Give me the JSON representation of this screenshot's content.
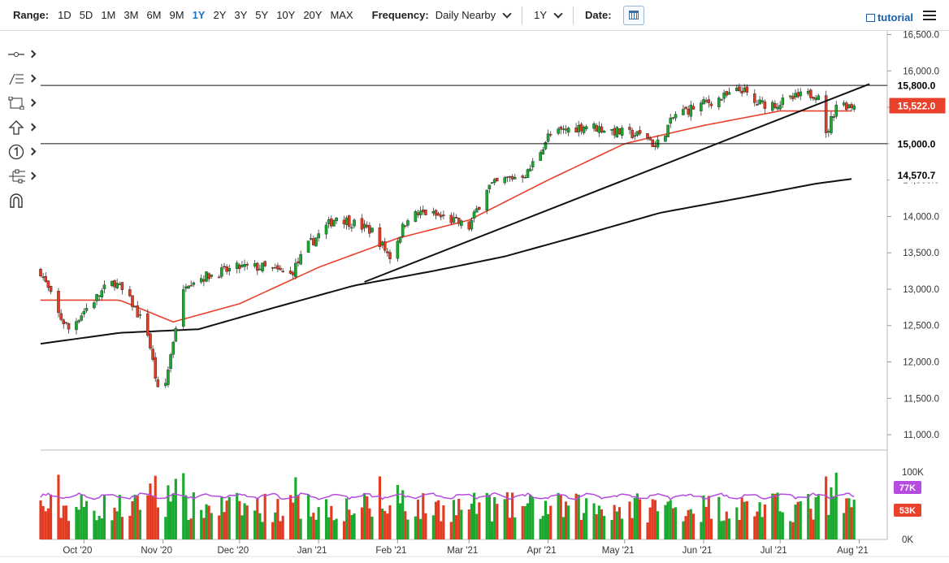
{
  "toolbar": {
    "range_label": "Range:",
    "ranges": [
      "1D",
      "5D",
      "1M",
      "3M",
      "6M",
      "9M",
      "1Y",
      "2Y",
      "3Y",
      "5Y",
      "10Y",
      "20Y",
      "MAX"
    ],
    "active_range": "1Y",
    "frequency_label": "Frequency:",
    "frequency_value": "Daily Nearby",
    "period_value": "1Y",
    "date_label": "Date:",
    "tutorial_label": "tutorial"
  },
  "sidebar_tools": [
    "crosshair-tool-icon",
    "fib-tool-icon",
    "rectangle-tool-icon",
    "arrow-up-tool-icon",
    "number-marker-tool-icon",
    "pitchfork-tool-icon",
    "magnet-tool-icon"
  ],
  "chart_data": {
    "type": "candlestick",
    "title": "",
    "xlabel": "",
    "ylabel": "",
    "ylim": [
      10800,
      16550
    ],
    "y_ticks": [
      11000,
      11500,
      12000,
      12500,
      13000,
      13500,
      14000,
      14500,
      15000,
      15500,
      16000,
      16500
    ],
    "y_tick_labels": [
      "11,000.0",
      "11,500.0",
      "12,000.0",
      "12,500.0",
      "13,000.0",
      "13,500.0",
      "14,000.0",
      "14,500.0",
      "15,000.0",
      "15,500.0",
      "16,000.0",
      "16,500.0"
    ],
    "x_tick_labels": [
      "Oct '20",
      "Nov '20",
      "Dec '20",
      "Jan '21",
      "Feb '21",
      "Mar '21",
      "Apr '21",
      "May '21",
      "Jun '21",
      "Jul '21",
      "Aug '21"
    ],
    "x_tick_dates": [
      "2020-10-01",
      "2020-11-01",
      "2020-12-01",
      "2021-01-01",
      "2021-02-01",
      "2021-03-01",
      "2021-04-01",
      "2021-05-01",
      "2021-06-01",
      "2021-07-01",
      "2021-08-01"
    ],
    "date_range": [
      "2020-09-14",
      "2021-08-12"
    ],
    "price_path": [
      {
        "date": "2020-09-14",
        "close": 13250
      },
      {
        "date": "2020-09-21",
        "close": 12650
      },
      {
        "date": "2020-09-25",
        "close": 12450
      },
      {
        "date": "2020-10-01",
        "close": 12700
      },
      {
        "date": "2020-10-09",
        "close": 13000
      },
      {
        "date": "2020-10-13",
        "close": 13100
      },
      {
        "date": "2020-10-20",
        "close": 12800
      },
      {
        "date": "2020-10-26",
        "close": 12400
      },
      {
        "date": "2020-10-30",
        "close": 11600
      },
      {
        "date": "2020-11-02",
        "close": 11700
      },
      {
        "date": "2020-11-06",
        "close": 12500
      },
      {
        "date": "2020-11-10",
        "close": 13100
      },
      {
        "date": "2020-11-20",
        "close": 13200
      },
      {
        "date": "2020-12-01",
        "close": 13300
      },
      {
        "date": "2020-12-10",
        "close": 13300
      },
      {
        "date": "2020-12-21",
        "close": 13200
      },
      {
        "date": "2020-12-28",
        "close": 13600
      },
      {
        "date": "2021-01-08",
        "close": 14000
      },
      {
        "date": "2021-01-15",
        "close": 13900
      },
      {
        "date": "2021-01-22",
        "close": 13800
      },
      {
        "date": "2021-01-29",
        "close": 13450
      },
      {
        "date": "2021-02-05",
        "close": 14000
      },
      {
        "date": "2021-02-12",
        "close": 14050
      },
      {
        "date": "2021-02-22",
        "close": 13950
      },
      {
        "date": "2021-03-01",
        "close": 13850
      },
      {
        "date": "2021-03-08",
        "close": 14400
      },
      {
        "date": "2021-03-15",
        "close": 14500
      },
      {
        "date": "2021-03-24",
        "close": 14600
      },
      {
        "date": "2021-04-01",
        "close": 15100
      },
      {
        "date": "2021-04-09",
        "close": 15200
      },
      {
        "date": "2021-04-16",
        "close": 15250
      },
      {
        "date": "2021-04-30",
        "close": 15150
      },
      {
        "date": "2021-05-10",
        "close": 15100
      },
      {
        "date": "2021-05-13",
        "close": 14950
      },
      {
        "date": "2021-05-21",
        "close": 15400
      },
      {
        "date": "2021-06-01",
        "close": 15550
      },
      {
        "date": "2021-06-10",
        "close": 15650
      },
      {
        "date": "2021-06-16",
        "close": 15750
      },
      {
        "date": "2021-06-21",
        "close": 15550
      },
      {
        "date": "2021-06-30",
        "close": 15550
      },
      {
        "date": "2021-07-09",
        "close": 15650
      },
      {
        "date": "2021-07-16",
        "close": 15700
      },
      {
        "date": "2021-07-19",
        "close": 15100
      },
      {
        "date": "2021-07-23",
        "close": 15550
      },
      {
        "date": "2021-07-30",
        "close": 15522
      }
    ],
    "overlays": [
      {
        "kind": "moving-average",
        "color": "#e8412c",
        "points": [
          {
            "date": "2020-09-14",
            "value": 12850
          },
          {
            "date": "2020-10-15",
            "value": 12850
          },
          {
            "date": "2020-11-05",
            "value": 12550
          },
          {
            "date": "2020-12-01",
            "value": 12800
          },
          {
            "date": "2021-01-01",
            "value": 13300
          },
          {
            "date": "2021-02-01",
            "value": 13700
          },
          {
            "date": "2021-03-01",
            "value": 13950
          },
          {
            "date": "2021-04-01",
            "value": 14500
          },
          {
            "date": "2021-05-01",
            "value": 15000
          },
          {
            "date": "2021-06-01",
            "value": 15250
          },
          {
            "date": "2021-07-01",
            "value": 15450
          },
          {
            "date": "2021-07-30",
            "value": 15450
          }
        ]
      },
      {
        "kind": "moving-average",
        "color": "#111111",
        "points": [
          {
            "date": "2020-09-14",
            "value": 12250
          },
          {
            "date": "2020-10-15",
            "value": 12400
          },
          {
            "date": "2020-11-15",
            "value": 12450
          },
          {
            "date": "2020-12-15",
            "value": 12750
          },
          {
            "date": "2021-01-15",
            "value": 13050
          },
          {
            "date": "2021-02-15",
            "value": 13250
          },
          {
            "date": "2021-03-15",
            "value": 13450
          },
          {
            "date": "2021-04-15",
            "value": 13750
          },
          {
            "date": "2021-05-15",
            "value": 14050
          },
          {
            "date": "2021-06-15",
            "value": 14250
          },
          {
            "date": "2021-07-15",
            "value": 14450
          },
          {
            "date": "2021-07-30",
            "value": 14520
          }
        ]
      }
    ],
    "trendline": {
      "start": {
        "date": "2021-01-19",
        "value": 13100
      },
      "end": {
        "date": "2021-08-05",
        "value": 15820
      }
    },
    "horizontal_lines": [
      15800,
      15000
    ],
    "price_labels": [
      {
        "value": 15800,
        "text": "15,800.0",
        "bg": "#ffffff",
        "fg": "#000000"
      },
      {
        "value": 15522,
        "text": "15,522.0",
        "bg": "#e8412c",
        "fg": "#ffffff"
      },
      {
        "value": 15000,
        "text": "15,000.0",
        "bg": "#ffffff",
        "fg": "#000000"
      },
      {
        "value": 14570.7,
        "text": "14,570.7",
        "bg": "#ffffff",
        "fg": "#000000"
      }
    ],
    "volume": {
      "ylim": [
        0,
        130000
      ],
      "y_tick_labels": [
        "100K",
        "0K"
      ],
      "y_ticks": [
        100000,
        0
      ],
      "avg_line_color": "#b64be0",
      "labels": [
        {
          "value": 77000,
          "text": "77K",
          "bg": "#b64be0",
          "fg": "#ffffff"
        },
        {
          "value": 53000,
          "text": "53K",
          "bg": "#e8412c",
          "fg": "#ffffff"
        }
      ]
    },
    "colors": {
      "up": "#1aa82f",
      "down": "#e23b22",
      "grid": "#e6e6e6"
    }
  }
}
